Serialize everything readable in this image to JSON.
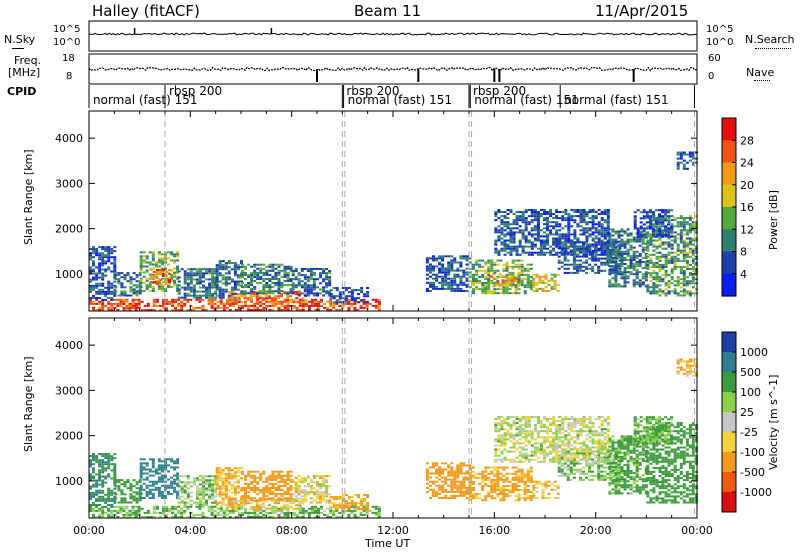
{
  "header": {
    "station": "Halley (fitACF)",
    "beam": "Beam 11",
    "date": "11/Apr/2015"
  },
  "top_panels": {
    "nsky_label": "N.Sky",
    "nsearch_label": "N.Search",
    "nsky_ticks": [
      "10^5",
      "10^0"
    ],
    "nsearch_ticks": [
      "10^5",
      "10^0"
    ],
    "freq_label_line1": "Freq.",
    "freq_label_line2": "[MHz]",
    "freq_ticks": [
      "18",
      "8"
    ],
    "nave_label": "Nave",
    "nave_ticks": [
      "60",
      "0"
    ],
    "cpid_label": "CPID"
  },
  "cpid_segments": [
    {
      "name": "normal (fast)",
      "id": "151",
      "start_h": 0.0,
      "end_h": 10.0
    },
    {
      "name": "rbsp",
      "id": "200",
      "start_h": 3.0,
      "end_h": 3.0
    },
    {
      "name": "rbsp",
      "id": "200",
      "start_h": 10.0,
      "end_h": 10.0
    },
    {
      "name": "normal (fast)",
      "id": "151",
      "start_h": 10.05,
      "end_h": 15.0
    },
    {
      "name": "rbsp",
      "id": "200",
      "start_h": 15.0,
      "end_h": 15.0
    },
    {
      "name": "normal (fast)",
      "id": "151",
      "start_h": 15.05,
      "end_h": 18.5
    },
    {
      "name": "normal (fast)",
      "id": "151",
      "start_h": 18.6,
      "end_h": 23.9
    }
  ],
  "colors": {
    "power": [
      "#0a1cf0",
      "#1f3fa8",
      "#2f7f6f",
      "#53a93d",
      "#d9c21a",
      "#f29a1a",
      "#ee5414",
      "#e41010"
    ],
    "velocity": [
      "#d81010",
      "#ee5a14",
      "#f39a1c",
      "#f4d23c",
      "#c6c6c6",
      "#8bd24a",
      "#3b9a3b",
      "#2f7f8f",
      "#1f3fa8"
    ]
  },
  "chart_data": [
    {
      "type": "heatmap",
      "panel": "power",
      "xlabel": "Time UT",
      "ylabel": "Slant Range [km]",
      "colorbar_label": "Power [dB]",
      "colorbar_ticks": [
        "28",
        "24",
        "20",
        "16",
        "12",
        "8",
        "4"
      ],
      "x_ticks": [
        "00:00",
        "04:00",
        "08:00",
        "12:00",
        "16:00",
        "20:00",
        "00:00"
      ],
      "y_ticks": [
        "1000",
        "2000",
        "3000",
        "4000"
      ],
      "xlim_h": [
        0,
        24
      ],
      "ylim_km": [
        180,
        4600
      ],
      "regions": [
        {
          "t0": 0.0,
          "t1": 11.5,
          "r0": 180,
          "r1": 420,
          "p": 27
        },
        {
          "t0": 0.0,
          "t1": 1.0,
          "r0": 400,
          "r1": 1600,
          "p": 7
        },
        {
          "t0": 1.0,
          "t1": 2.0,
          "r0": 500,
          "r1": 1000,
          "p": 9
        },
        {
          "t0": 2.0,
          "t1": 3.5,
          "r0": 600,
          "r1": 1500,
          "p": 14
        },
        {
          "t0": 2.4,
          "t1": 3.2,
          "r0": 750,
          "r1": 1100,
          "p": 24
        },
        {
          "t0": 3.5,
          "t1": 5.0,
          "r0": 450,
          "r1": 1100,
          "p": 9
        },
        {
          "t0": 5.0,
          "t1": 6.0,
          "r0": 450,
          "r1": 1300,
          "p": 8
        },
        {
          "t0": 5.5,
          "t1": 8.5,
          "r0": 350,
          "r1": 600,
          "p": 24
        },
        {
          "t0": 6.0,
          "t1": 8.0,
          "r0": 550,
          "r1": 1200,
          "p": 10
        },
        {
          "t0": 8.0,
          "t1": 9.5,
          "r0": 500,
          "r1": 1100,
          "p": 8
        },
        {
          "t0": 9.5,
          "t1": 11.0,
          "r0": 350,
          "r1": 700,
          "p": 7
        },
        {
          "t0": 13.3,
          "t1": 15.0,
          "r0": 600,
          "r1": 1400,
          "p": 7
        },
        {
          "t0": 15.0,
          "t1": 17.5,
          "r0": 550,
          "r1": 1300,
          "p": 14
        },
        {
          "t0": 15.8,
          "t1": 17.0,
          "r0": 700,
          "r1": 1000,
          "p": 22
        },
        {
          "t0": 17.5,
          "t1": 18.5,
          "r0": 600,
          "r1": 1000,
          "p": 18
        },
        {
          "t0": 18.5,
          "t1": 21.0,
          "r0": 1000,
          "r1": 1700,
          "p": 7
        },
        {
          "t0": 20.5,
          "t1": 22.0,
          "r0": 700,
          "r1": 2000,
          "p": 9
        },
        {
          "t0": 22.0,
          "t1": 24.0,
          "r0": 500,
          "r1": 2300,
          "p": 12
        },
        {
          "t0": 23.2,
          "t1": 24.0,
          "r0": 3300,
          "r1": 3700,
          "p": 7
        },
        {
          "t0": 16.0,
          "t1": 20.5,
          "r0": 1400,
          "r1": 2400,
          "p": 7
        },
        {
          "t0": 21.5,
          "t1": 23.0,
          "r0": 1800,
          "r1": 2400,
          "p": 6
        }
      ]
    },
    {
      "type": "heatmap",
      "panel": "velocity",
      "xlabel": "Time UT",
      "ylabel": "Slant Range [km]",
      "colorbar_label": "Velocity [m s^-1]",
      "colorbar_ticks": [
        "1000",
        "500",
        "100",
        "25",
        "-25",
        "-100",
        "-500",
        "-1000"
      ],
      "x_ticks": [
        "00:00",
        "04:00",
        "08:00",
        "12:00",
        "16:00",
        "20:00",
        "00:00"
      ],
      "y_ticks": [
        "1000",
        "2000",
        "3000",
        "4000"
      ],
      "xlim_h": [
        0,
        24
      ],
      "ylim_km": [
        180,
        4600
      ],
      "regions": [
        {
          "t0": 0.0,
          "t1": 11.5,
          "r0": 180,
          "r1": 420,
          "v": 100
        },
        {
          "t0": 0.0,
          "t1": 1.0,
          "r0": 400,
          "r1": 1600,
          "v": 500
        },
        {
          "t0": 1.0,
          "t1": 2.0,
          "r0": 500,
          "r1": 1000,
          "v": 200
        },
        {
          "t0": 2.0,
          "t1": 3.5,
          "r0": 600,
          "r1": 1500,
          "v": 800
        },
        {
          "t0": 3.5,
          "t1": 5.0,
          "r0": 450,
          "r1": 1100,
          "v": 60
        },
        {
          "t0": 5.0,
          "t1": 6.0,
          "r0": 450,
          "r1": 1300,
          "v": -120
        },
        {
          "t0": 5.5,
          "t1": 8.5,
          "r0": 350,
          "r1": 600,
          "v": -60
        },
        {
          "t0": 6.0,
          "t1": 8.0,
          "r0": 550,
          "r1": 1200,
          "v": -200
        },
        {
          "t0": 8.0,
          "t1": 9.5,
          "r0": 500,
          "r1": 1100,
          "v": -40
        },
        {
          "t0": 9.5,
          "t1": 11.0,
          "r0": 350,
          "r1": 700,
          "v": -150
        },
        {
          "t0": 13.3,
          "t1": 15.0,
          "r0": 600,
          "r1": 1400,
          "v": -300
        },
        {
          "t0": 15.0,
          "t1": 17.5,
          "r0": 550,
          "r1": 1300,
          "v": -150
        },
        {
          "t0": 17.5,
          "t1": 18.5,
          "r0": 600,
          "r1": 1000,
          "v": -60
        },
        {
          "t0": 18.5,
          "t1": 21.0,
          "r0": 1000,
          "r1": 1700,
          "v": 80
        },
        {
          "t0": 20.5,
          "t1": 22.0,
          "r0": 700,
          "r1": 2000,
          "v": 150
        },
        {
          "t0": 22.0,
          "t1": 24.0,
          "r0": 500,
          "r1": 2300,
          "v": 300
        },
        {
          "t0": 23.2,
          "t1": 24.0,
          "r0": 3300,
          "r1": 3700,
          "v": -100
        },
        {
          "t0": 16.0,
          "t1": 20.5,
          "r0": 1400,
          "r1": 2400,
          "v": 10
        },
        {
          "t0": 21.5,
          "t1": 23.0,
          "r0": 1800,
          "r1": 2400,
          "v": 120
        }
      ]
    }
  ]
}
